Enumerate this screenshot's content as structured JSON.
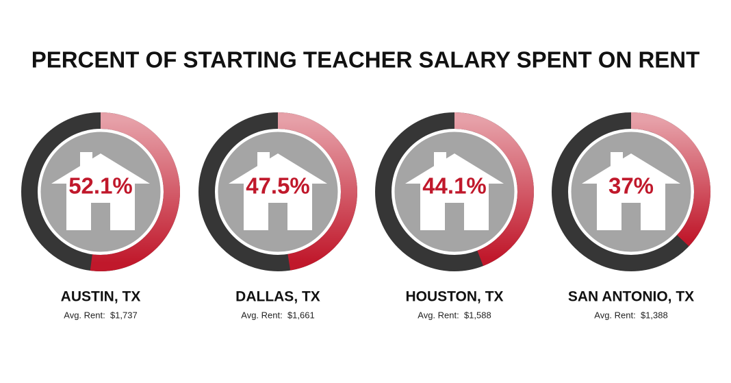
{
  "title": "PERCENT OF STARTING TEACHER SALARY SPENT ON RENT",
  "chart_data": [
    {
      "type": "donut",
      "title": "AUSTIN, TX",
      "subtitle": "Avg. Rent:  $1,737",
      "values": [
        52.1
      ],
      "value_labels": [
        "52.1%"
      ],
      "color": "#c0182b",
      "rest_color": "#363636"
    },
    {
      "type": "donut",
      "title": "DALLAS, TX",
      "subtitle": "Avg. Rent:  $1,661",
      "values": [
        47.5
      ],
      "value_labels": [
        "47.5%"
      ],
      "color": "#c0182b",
      "rest_color": "#363636"
    },
    {
      "type": "donut",
      "title": "HOUSTON, TX",
      "subtitle": "Avg. Rent:  $1,588",
      "values": [
        44.1
      ],
      "value_labels": [
        "44.1%"
      ],
      "color": "#c0182b",
      "rest_color": "#363636"
    },
    {
      "type": "donut",
      "title": "SAN ANTONIO, TX",
      "subtitle": "Avg. Rent:  $1,388",
      "values": [
        37
      ],
      "value_labels": [
        "37%"
      ],
      "color": "#c0182b",
      "rest_color": "#363636"
    }
  ]
}
